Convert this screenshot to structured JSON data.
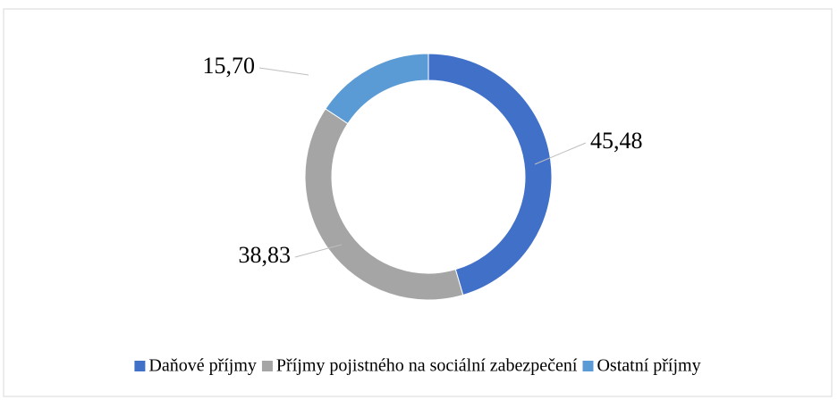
{
  "chart_data": {
    "type": "donut",
    "categories": [
      "Daňové příjmy",
      "Příjmy pojistného na sociální zabezpečení",
      "Ostatní příjmy"
    ],
    "values": [
      45.48,
      38.83,
      15.7
    ],
    "value_labels": [
      "45,48",
      "38,83",
      "15,70"
    ],
    "colors": [
      "#4170c8",
      "#a5a5a5",
      "#5b9bd5"
    ],
    "legend": "bottom"
  }
}
